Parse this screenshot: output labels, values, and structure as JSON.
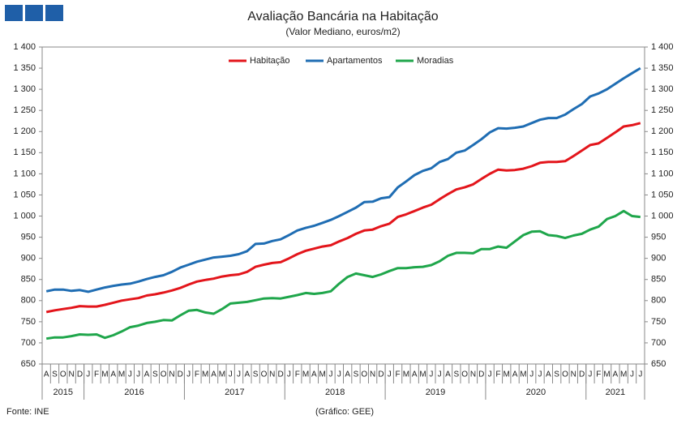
{
  "chart_data": {
    "type": "line",
    "title": "Avaliação Bancária na Habitação",
    "subtitle": "(Valor Mediano, euros/m2)",
    "source": "Fonte: INE",
    "credit": "(Gráfico: GEE)",
    "categories": [
      "A",
      "S",
      "O",
      "N",
      "D",
      "J",
      "F",
      "M",
      "A",
      "M",
      "J",
      "J",
      "A",
      "S",
      "O",
      "N",
      "D",
      "J",
      "F",
      "M",
      "A",
      "M",
      "J",
      "J",
      "A",
      "S",
      "O",
      "N",
      "D",
      "J",
      "F",
      "M",
      "A",
      "M",
      "J",
      "J",
      "A",
      "S",
      "O",
      "N",
      "D",
      "J",
      "F",
      "M",
      "A",
      "M",
      "J",
      "J",
      "A",
      "S",
      "O",
      "N",
      "D",
      "J",
      "F",
      "M",
      "A",
      "M",
      "J",
      "J",
      "A",
      "S",
      "O",
      "N",
      "D",
      "J",
      "F",
      "M",
      "A",
      "M",
      "J",
      "J"
    ],
    "years": [
      "2015",
      "2016",
      "2017",
      "2018",
      "2019",
      "2020",
      "2021"
    ],
    "series": [
      {
        "name": "Habitação",
        "color": "#e3151b",
        "values": [
          773,
          777,
          780,
          783,
          787,
          786,
          786,
          790,
          795,
          800,
          803,
          806,
          812,
          815,
          819,
          824,
          830,
          838,
          845,
          849,
          852,
          857,
          860,
          862,
          868,
          880,
          885,
          889,
          891,
          900,
          910,
          918,
          923,
          928,
          931,
          940,
          948,
          958,
          966,
          968,
          976,
          982,
          998,
          1004,
          1012,
          1020,
          1027,
          1040,
          1052,
          1063,
          1068,
          1075,
          1088,
          1100,
          1110,
          1108,
          1109,
          1112,
          1118,
          1126,
          1128,
          1128,
          1130,
          1142,
          1155,
          1168,
          1172,
          1185,
          1198,
          1212,
          1215,
          1220
        ]
      },
      {
        "name": "Apartamentos",
        "color": "#1f6db3",
        "values": [
          822,
          826,
          826,
          823,
          825,
          821,
          826,
          831,
          835,
          838,
          840,
          845,
          851,
          856,
          860,
          868,
          878,
          885,
          892,
          897,
          902,
          904,
          906,
          910,
          917,
          934,
          935,
          941,
          945,
          955,
          966,
          972,
          977,
          984,
          991,
          1000,
          1010,
          1020,
          1033,
          1034,
          1042,
          1045,
          1068,
          1082,
          1097,
          1107,
          1113,
          1128,
          1135,
          1150,
          1155,
          1168,
          1182,
          1198,
          1208,
          1207,
          1209,
          1212,
          1220,
          1228,
          1232,
          1232,
          1240,
          1253,
          1265,
          1283,
          1290,
          1300,
          1313,
          1326,
          1338,
          1350
        ]
      },
      {
        "name": "Moradias",
        "color": "#1fa64b",
        "values": [
          710,
          713,
          713,
          716,
          720,
          719,
          720,
          712,
          718,
          727,
          737,
          741,
          747,
          750,
          754,
          753,
          765,
          776,
          778,
          772,
          769,
          780,
          793,
          795,
          797,
          801,
          805,
          806,
          805,
          809,
          813,
          818,
          816,
          818,
          822,
          840,
          856,
          864,
          860,
          856,
          862,
          870,
          877,
          877,
          879,
          880,
          884,
          893,
          906,
          913,
          913,
          912,
          922,
          922,
          928,
          925,
          940,
          955,
          963,
          964,
          955,
          953,
          948,
          954,
          958,
          968,
          975,
          993,
          1000,
          1012,
          1000,
          998
        ]
      }
    ],
    "ylim": [
      650,
      1400
    ],
    "yticks": [
      650,
      700,
      750,
      800,
      850,
      900,
      950,
      {
        "value": 1000,
        "label": "1 000"
      },
      {
        "value": 1050,
        "label": "1 050"
      },
      {
        "value": 1100,
        "label": "1 100"
      },
      {
        "value": 1150,
        "label": "1 150"
      },
      {
        "value": 1200,
        "label": "1 200"
      },
      {
        "value": 1250,
        "label": "1 250"
      },
      {
        "value": 1300,
        "label": "1 300"
      },
      {
        "value": 1350,
        "label": "1 350"
      },
      {
        "value": 1400,
        "label": "1 400"
      }
    ],
    "grid": false
  }
}
